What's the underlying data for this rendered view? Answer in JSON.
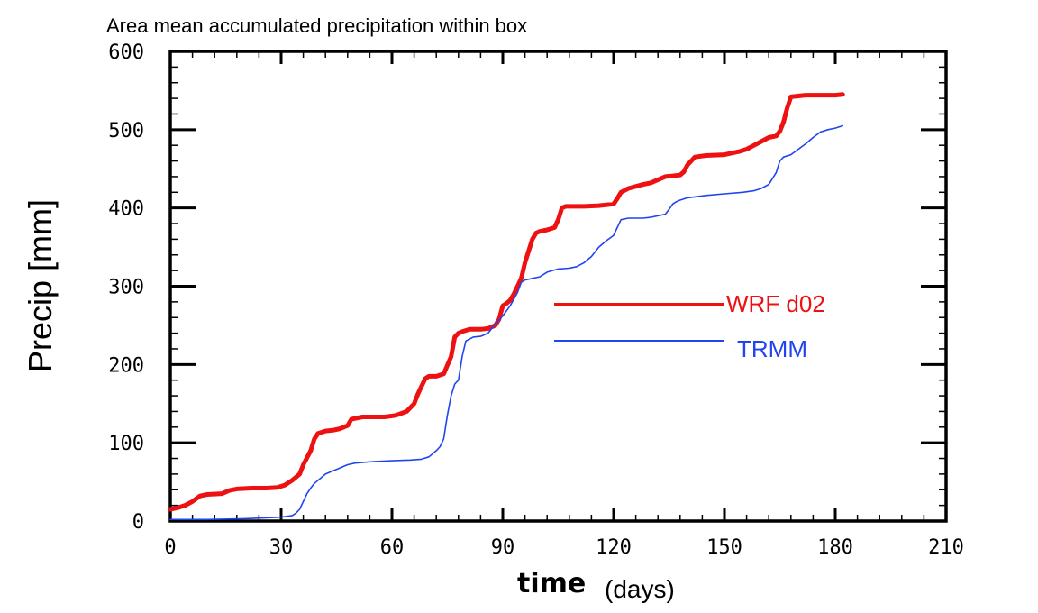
{
  "chart_data": {
    "type": "line",
    "title": "Area mean accumulated precipitation within box",
    "xlabel": "time",
    "xlabel_unit": "(days)",
    "ylabel": "Precip [mm]",
    "xlim": [
      0,
      210
    ],
    "ylim": [
      0,
      600
    ],
    "xticks": [
      0,
      30,
      60,
      90,
      120,
      150,
      180,
      210
    ],
    "yticks": [
      0,
      100,
      200,
      300,
      400,
      500,
      600
    ],
    "xtick_labels": [
      "0",
      "30",
      "60",
      "90",
      "120",
      "150",
      "180",
      "210"
    ],
    "ytick_labels": [
      "0",
      "100",
      "200",
      "300",
      "400",
      "500",
      "600"
    ],
    "legend_position": "center-right",
    "series": [
      {
        "name": "WRF d02",
        "color": "#ee1111",
        "x": [
          0,
          2,
          4,
          6,
          8,
          10,
          14,
          16,
          18,
          22,
          26,
          29,
          31,
          33,
          35,
          36,
          38,
          39,
          40,
          42,
          44,
          46,
          48,
          49,
          52,
          55,
          58,
          61,
          64,
          66,
          67,
          68,
          69,
          70,
          72,
          74,
          76,
          77,
          78,
          79,
          81,
          84,
          86,
          88,
          89,
          90,
          91,
          92,
          93,
          95,
          96,
          97,
          98,
          99,
          100,
          102,
          104,
          105,
          106,
          107,
          108,
          112,
          116,
          120,
          121,
          122,
          124,
          128,
          130,
          132,
          134,
          136,
          138,
          139,
          140,
          142,
          145,
          150,
          154,
          156,
          158,
          160,
          162,
          164,
          165,
          166,
          167,
          168,
          172,
          176,
          180,
          182
        ],
        "y": [
          15,
          17,
          20,
          25,
          32,
          34,
          35,
          39,
          41,
          42,
          42,
          43,
          46,
          52,
          60,
          72,
          90,
          105,
          112,
          115,
          116,
          118,
          122,
          130,
          133,
          133,
          133,
          135,
          140,
          150,
          162,
          172,
          182,
          185,
          185,
          188,
          210,
          235,
          240,
          242,
          245,
          245,
          246,
          250,
          258,
          275,
          278,
          282,
          290,
          310,
          330,
          345,
          360,
          368,
          370,
          372,
          375,
          385,
          400,
          402,
          402,
          402,
          403,
          405,
          412,
          420,
          425,
          430,
          432,
          436,
          440,
          441,
          442,
          446,
          455,
          465,
          467,
          468,
          472,
          475,
          480,
          485,
          490,
          492,
          498,
          510,
          528,
          542,
          544,
          544,
          544,
          545
        ]
      },
      {
        "name": "TRMM",
        "color": "#2244ee",
        "x": [
          0,
          10,
          20,
          30,
          33,
          34,
          35,
          36,
          37,
          38,
          39,
          40,
          41,
          42,
          44,
          46,
          48,
          50,
          55,
          60,
          65,
          68,
          70,
          72,
          73,
          74,
          75,
          76,
          77,
          78,
          79,
          80,
          82,
          84,
          86,
          88,
          90,
          92,
          94,
          95,
          96,
          98,
          100,
          102,
          105,
          108,
          110,
          112,
          114,
          116,
          118,
          120,
          121,
          122,
          124,
          126,
          128,
          130,
          132,
          134,
          135,
          136,
          137,
          138,
          140,
          145,
          150,
          155,
          158,
          160,
          162,
          164,
          165,
          166,
          168,
          170,
          172,
          174,
          176,
          178,
          180,
          182
        ],
        "y": [
          2,
          2,
          3,
          5,
          7,
          10,
          15,
          25,
          35,
          42,
          48,
          52,
          56,
          60,
          64,
          68,
          72,
          74,
          76,
          77,
          78,
          79,
          82,
          90,
          95,
          105,
          135,
          160,
          175,
          180,
          210,
          230,
          235,
          236,
          240,
          252,
          262,
          275,
          292,
          305,
          308,
          310,
          312,
          318,
          322,
          323,
          325,
          330,
          338,
          350,
          358,
          365,
          375,
          385,
          387,
          387,
          387,
          388,
          390,
          392,
          398,
          405,
          408,
          410,
          413,
          416,
          418,
          420,
          422,
          425,
          430,
          445,
          460,
          465,
          468,
          475,
          482,
          490,
          497,
          500,
          502,
          505
        ]
      }
    ]
  }
}
